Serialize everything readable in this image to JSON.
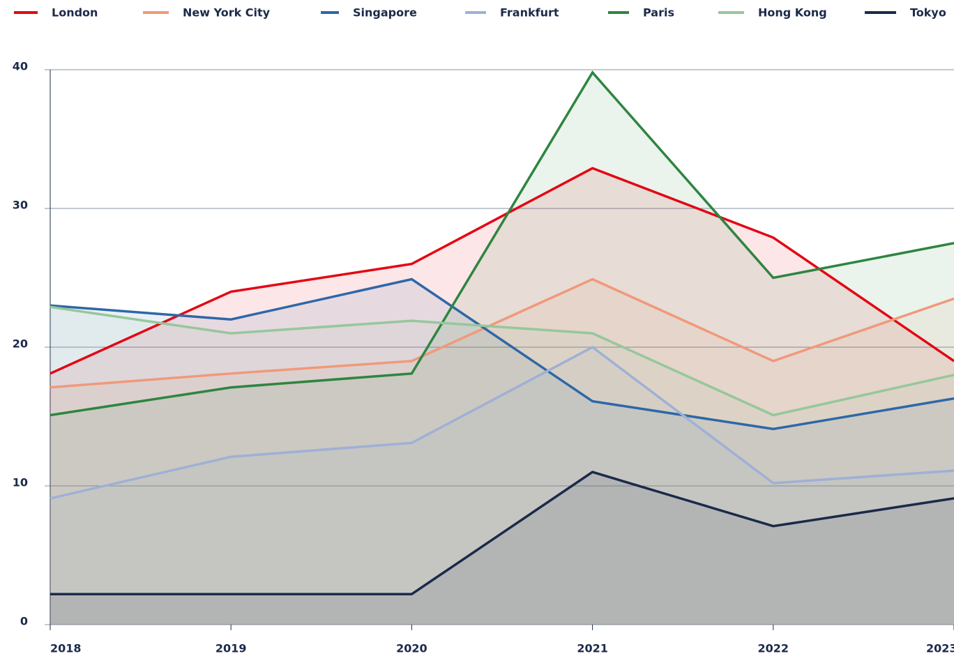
{
  "chart_data": {
    "type": "line",
    "area": true,
    "legend": "top",
    "grid": true,
    "categories": [
      "2018",
      "2019",
      "2020",
      "2021",
      "2022",
      "2023"
    ],
    "ylim": [
      0,
      40
    ],
    "yticks": [
      0,
      10,
      20,
      30,
      40
    ],
    "series": [
      {
        "name": "London",
        "color": "#e30613",
        "values": [
          18.1,
          24.0,
          26.0,
          32.9,
          27.9,
          19.0
        ]
      },
      {
        "name": "New York City",
        "color": "#f0997a",
        "values": [
          17.1,
          18.1,
          19.0,
          24.9,
          19.0,
          23.5
        ]
      },
      {
        "name": "Singapore",
        "color": "#2e67a8",
        "values": [
          23.0,
          22.0,
          24.9,
          16.1,
          14.1,
          16.3
        ]
      },
      {
        "name": "Frankfurt",
        "color": "#9fb0d6",
        "values": [
          9.1,
          12.1,
          13.1,
          20.0,
          10.2,
          11.1
        ]
      },
      {
        "name": "Paris",
        "color": "#2e8540",
        "values": [
          15.1,
          17.1,
          18.1,
          39.8,
          25.0,
          27.5
        ]
      },
      {
        "name": "Hong Kong",
        "color": "#96c79b",
        "values": [
          22.9,
          21.0,
          21.9,
          21.0,
          15.1,
          18.0
        ]
      },
      {
        "name": "Tokyo",
        "color": "#1b2a4a",
        "values": [
          2.2,
          2.2,
          2.2,
          11.0,
          7.1,
          9.1
        ]
      }
    ]
  }
}
